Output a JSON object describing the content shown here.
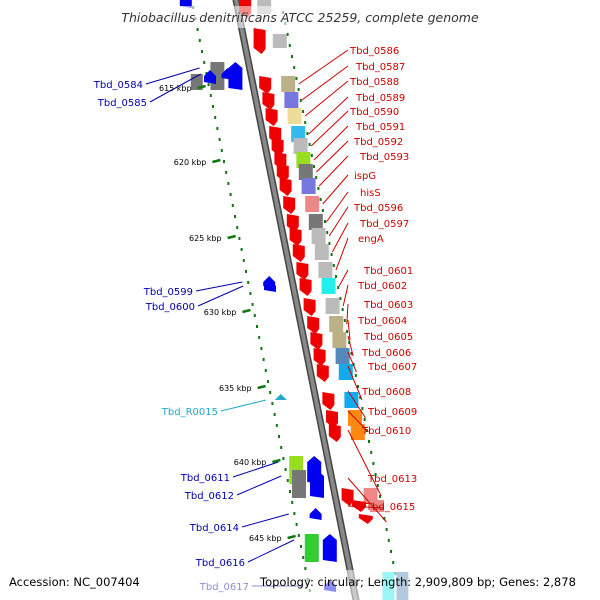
{
  "genome": {
    "title": "Thiobacillus denitrificans ATCC 25259, complete genome",
    "accession_text": "Accession: NC_007404",
    "stats_text": "Topology: circular; Length: 2,909,809 bp; Genes: 2,878"
  },
  "colors": {
    "forward_label": "#0000aa",
    "reverse_label": "#cc0000",
    "rna_label": "#22aacc",
    "forward_gene": "#0000ee",
    "reverse_gene": "#ee0000",
    "scale_tick": "#117711",
    "backbone": "#888888"
  },
  "kbp_markers": [
    "615 kbp",
    "620 kbp",
    "625 kbp",
    "630 kbp",
    "635 kbp",
    "640 kbp",
    "645 kbp"
  ],
  "reverse_genes": [
    {
      "label": "Tbd_0586",
      "cog": "#bbb088"
    },
    {
      "label": "Tbd_0587",
      "cog": "#7777dd"
    },
    {
      "label": "Tbd_0588",
      "cog": "#eedd99"
    },
    {
      "label": "Tbd_0589",
      "cog": "#33bbee"
    },
    {
      "label": "Tbd_0590",
      "cog": "#bbbbbb"
    },
    {
      "label": "Tbd_0591",
      "cog": "#99dd22"
    },
    {
      "label": "Tbd_0592",
      "cog": "#777777"
    },
    {
      "label": "Tbd_0593",
      "cog": "#7777dd"
    },
    {
      "label": "ispG",
      "cog": "#ee8888"
    },
    {
      "label": "hisS",
      "cog": "#777777"
    },
    {
      "label": "Tbd_0596",
      "cog": "#bbbbbb"
    },
    {
      "label": "Tbd_0597",
      "cog": "#bbbbbb"
    },
    {
      "label": "engA",
      "cog": "#bbbbbb"
    },
    {
      "label": "Tbd_0601",
      "cog": "#22eeee"
    },
    {
      "label": "Tbd_0602",
      "cog": "#bbbbbb"
    },
    {
      "label": "Tbd_0603",
      "cog": "#bbb088"
    },
    {
      "label": "Tbd_0604",
      "cog": "#bbb088"
    },
    {
      "label": "Tbd_0605",
      "cog": "#5588bb"
    },
    {
      "label": "Tbd_0606",
      "cog": "#11aaee"
    },
    {
      "label": "Tbd_0607",
      "cog": "#11aaee"
    },
    {
      "label": "Tbd_0608",
      "cog": "#ff8811"
    },
    {
      "label": "Tbd_0609",
      "cog": "#ff8811"
    },
    {
      "label": "Tbd_0610",
      "cog": "#ee8888"
    },
    {
      "label": "Tbd_0613",
      "cog": ""
    },
    {
      "label": "Tbd_0615",
      "cog": "#ee8888"
    }
  ],
  "forward_genes": [
    {
      "label": "Tbd_0584",
      "cog": "#777777"
    },
    {
      "label": "Tbd_0585",
      "cog": ""
    },
    {
      "label": "Tbd_0599",
      "cog": ""
    },
    {
      "label": "Tbd_0600",
      "cog": ""
    },
    {
      "label": "Tbd_R0015",
      "cog": "",
      "rna": true
    },
    {
      "label": "Tbd_0611",
      "cog": "#99dd22"
    },
    {
      "label": "Tbd_0612",
      "cog": "#777777"
    },
    {
      "label": "Tbd_0614",
      "cog": ""
    },
    {
      "label": "Tbd_0616",
      "cog": "#33cc33"
    },
    {
      "label": "Tbd_0617",
      "cog": ""
    }
  ]
}
